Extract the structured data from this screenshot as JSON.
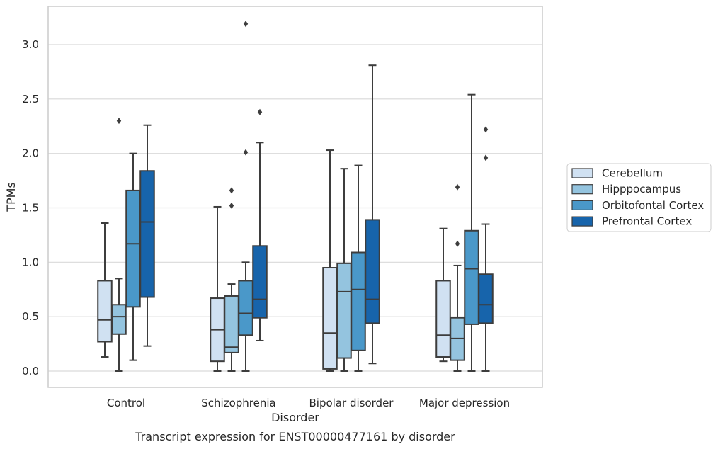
{
  "chart_data": {
    "type": "box",
    "title": "",
    "caption": "Transcript expression for ENST00000477161 by disorder",
    "xlabel": "Disorder",
    "ylabel": "TPMs",
    "ylim": [
      -0.15,
      3.35
    ],
    "yticks": [
      0.0,
      0.5,
      1.0,
      1.5,
      2.0,
      2.5,
      3.0
    ],
    "ytick_labels": [
      "0.0",
      "0.5",
      "1.0",
      "1.5",
      "2.0",
      "2.5",
      "3.0"
    ],
    "grid": "horizontal",
    "legend_position": "outside-right",
    "categories": [
      "Control",
      "Schizophrenia",
      "Bipolar disorder",
      "Major depression"
    ],
    "series": [
      {
        "name": "Cerebellum",
        "color": "#d0e1f2",
        "boxes": [
          {
            "whislo": 0.13,
            "q1": 0.27,
            "med": 0.47,
            "q3": 0.83,
            "whishi": 1.36,
            "fliers": []
          },
          {
            "whislo": 0.0,
            "q1": 0.09,
            "med": 0.38,
            "q3": 0.67,
            "whishi": 1.51,
            "fliers": []
          },
          {
            "whislo": 0.0,
            "q1": 0.02,
            "med": 0.35,
            "q3": 0.95,
            "whishi": 2.03,
            "fliers": []
          },
          {
            "whislo": 0.09,
            "q1": 0.13,
            "med": 0.33,
            "q3": 0.83,
            "whishi": 1.31,
            "fliers": []
          }
        ]
      },
      {
        "name": "Hipppocampus",
        "color": "#94c4df",
        "boxes": [
          {
            "whislo": 0.0,
            "q1": 0.34,
            "med": 0.5,
            "q3": 0.61,
            "whishi": 0.85,
            "fliers": [
              2.3
            ]
          },
          {
            "whislo": 0.0,
            "q1": 0.17,
            "med": 0.22,
            "q3": 0.69,
            "whishi": 0.8,
            "fliers": [
              1.52,
              1.66
            ]
          },
          {
            "whislo": 0.0,
            "q1": 0.12,
            "med": 0.73,
            "q3": 0.99,
            "whishi": 1.86,
            "fliers": []
          },
          {
            "whislo": 0.0,
            "q1": 0.1,
            "med": 0.3,
            "q3": 0.49,
            "whishi": 0.97,
            "fliers": [
              1.17,
              1.69
            ]
          }
        ]
      },
      {
        "name": "Orbitofontal Cortex",
        "color": "#4a98c9",
        "boxes": [
          {
            "whislo": 0.1,
            "q1": 0.59,
            "med": 1.17,
            "q3": 1.66,
            "whishi": 2.0,
            "fliers": []
          },
          {
            "whislo": 0.0,
            "q1": 0.33,
            "med": 0.53,
            "q3": 0.83,
            "whishi": 1.0,
            "fliers": [
              2.01,
              3.19
            ]
          },
          {
            "whislo": 0.0,
            "q1": 0.19,
            "med": 0.75,
            "q3": 1.09,
            "whishi": 1.89,
            "fliers": []
          },
          {
            "whislo": 0.0,
            "q1": 0.43,
            "med": 0.94,
            "q3": 1.29,
            "whishi": 2.54,
            "fliers": []
          }
        ]
      },
      {
        "name": "Prefrontal Cortex",
        "color": "#1764ab",
        "boxes": [
          {
            "whislo": 0.23,
            "q1": 0.68,
            "med": 1.37,
            "q3": 1.84,
            "whishi": 2.26,
            "fliers": []
          },
          {
            "whislo": 0.28,
            "q1": 0.49,
            "med": 0.66,
            "q3": 1.15,
            "whishi": 2.1,
            "fliers": [
              2.38
            ]
          },
          {
            "whislo": 0.07,
            "q1": 0.44,
            "med": 0.66,
            "q3": 1.39,
            "whishi": 2.81,
            "fliers": []
          },
          {
            "whislo": 0.0,
            "q1": 0.44,
            "med": 0.61,
            "q3": 0.89,
            "whishi": 1.35,
            "fliers": [
              1.96,
              2.22
            ]
          }
        ]
      }
    ]
  }
}
